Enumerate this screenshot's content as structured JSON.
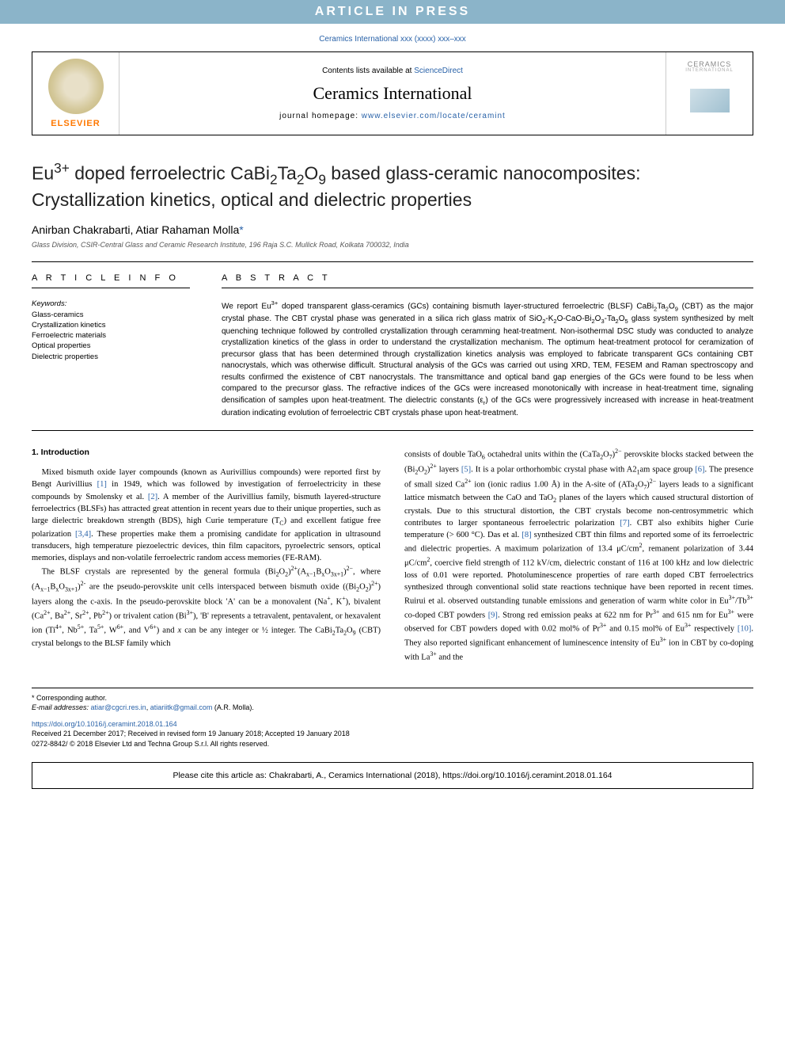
{
  "banner": {
    "text": "ARTICLE IN PRESS"
  },
  "journal_ref": "Ceramics International xxx (xxxx) xxx–xxx",
  "header": {
    "contents_text": "Contents lists available at ",
    "contents_link": "ScienceDirect",
    "journal_name": "Ceramics International",
    "homepage_text": "journal homepage: ",
    "homepage_link": "www.elsevier.com/locate/ceramint",
    "elsevier_label": "ELSEVIER",
    "cover_title": "CERAMICS",
    "cover_sub": "INTERNATIONAL"
  },
  "title_html": "Eu<sup>3+</sup> doped ferroelectric CaBi<sub>2</sub>Ta<sub>2</sub>O<sub>9</sub> based glass-ceramic nanocomposites: Crystallization kinetics, optical and dielectric properties",
  "authors_html": "Anirban Chakrabarti, Atiar Rahaman Molla<span class=\"corr\">*</span>",
  "affiliation": "Glass Division, CSIR-Central Glass and Ceramic Research Institute, 196 Raja S.C. Mullick Road, Kolkata 700032, India",
  "info": {
    "heading": "A R T I C L E   I N F O",
    "keywords_label": "Keywords:",
    "keywords": [
      "Glass-ceramics",
      "Crystallization kinetics",
      "Ferroelectric materials",
      "Optical properties",
      "Dielectric properties"
    ]
  },
  "abstract": {
    "heading": "A B S T R A C T",
    "text_html": "We report Eu<sup>3+</sup> doped transparent glass-ceramics (GCs) containing bismuth layer-structured ferroelectric (BLSF) CaBi<sub>2</sub>Ta<sub>2</sub>O<sub>9</sub> (CBT) as the major crystal phase. The CBT crystal phase was generated in a silica rich glass matrix of SiO<sub>2</sub>-K<sub>2</sub>O-CaO-Bi<sub>2</sub>O<sub>3</sub>-Ta<sub>2</sub>O<sub>5</sub> glass system synthesized by melt quenching technique followed by controlled crystallization through ceramming heat-treatment. Non-isothermal DSC study was conducted to analyze crystallization kinetics of the glass in order to understand the crystallization mechanism. The optimum heat-treatment protocol for ceramization of precursor glass that has been determined through crystallization kinetics analysis was employed to fabricate transparent GCs containing CBT nanocrystals, which was otherwise difficult. Structural analysis of the GCs was carried out using XRD, TEM, FESEM and Raman spectroscopy and results confirmed the existence of CBT nanocrystals. The transmittance and optical band gap energies of the GCs were found to be less when compared to the precursor glass. The refractive indices of the GCs were increased monotonically with increase in heat-treatment time, signaling densification of samples upon heat-treatment. The dielectric constants (ε<sub>r</sub>) of the GCs were progressively increased with increase in heat-treatment duration indicating evolution of ferroelectric CBT crystals phase upon heat-treatment."
  },
  "section1": {
    "heading": "1. Introduction",
    "col1_html": "<p>Mixed bismuth oxide layer compounds (known as Aurivillius compounds) were reported first by Bengt Aurivillius <a>[1]</a> in 1949, which was followed by investigation of ferroelectricity in these compounds by Smolensky et al. <a>[2]</a>. A member of the Aurivillius family, bismuth layered-structure ferroelectrics (BLSFs) has attracted great attention in recent years due to their unique properties, such as large dielectric breakdown strength (BDS), high Curie temperature (T<sub>C</sub>) and excellent fatigue free polarization <a>[3,4]</a>. These properties make them a promising candidate for application in ultrasound transducers, high temperature piezoelectric devices, thin film capacitors, pyroelectric sensors, optical memories, displays and non-volatile ferroelectric random access memories (FE-RAM).</p><p>The BLSF crystals are represented by the general formula (Bi<sub>2</sub>O<sub>2</sub>)<sup>2+</sup>(A<sub>x−1</sub>B<sub>x</sub>O<sub>3x+1</sub>)<sup>2−</sup>, where (A<sub>x−1</sub>B<sub>x</sub>O<sub>3x+1</sub>)<sup>2-</sup> are the pseudo-perovskite unit cells interspaced between bismuth oxide ((Bi<sub>2</sub>O<sub>2</sub>)<sup>2+</sup>) layers along the c-axis. In the pseudo-perovskite block 'A' can be a monovalent (Na<sup>+</sup>, K<sup>+</sup>), bivalent (Ca<sup>2+</sup>, Ba<sup>2+</sup>, Sr<sup>2+</sup>, Pb<sup>2+</sup>) or trivalent cation (Bi<sup>3+</sup>), 'B' represents a tetravalent, pentavalent, or hexavalent ion (Ti<sup>4+</sup>, Nb<sup>5+</sup>, Ta<sup>5+</sup>, W<sup>6+</sup>, and V<sup>6+</sup>) and <i>x</i> can be any integer or ½ integer. The CaBi<sub>2</sub>Ta<sub>2</sub>O<sub>9</sub> (CBT) crystal belongs to the BLSF family which</p>",
    "col2_html": "<p style=\"text-indent:0\">consists of double TaO<sub>6</sub> octahedral units within the (CaTa<sub>2</sub>O<sub>7</sub>)<sup>2−</sup> perovskite blocks stacked between the (Bi<sub>2</sub>O<sub>2</sub>)<sup>2+</sup> layers <a>[5]</a>. It is a polar orthorhombic crystal phase with A2<sub>1</sub>am space group <a>[6]</a>. The presence of small sized Ca<sup>2+</sup> ion (ionic radius 1.00 Å) in the A-site of (ATa<sub>2</sub>O<sub>7</sub>)<sup>2−</sup> layers leads to a significant lattice mismatch between the CaO and TaO<sub>2</sub> planes of the layers which caused structural distortion of crystals. Due to this structural distortion, the CBT crystals become non-centrosymmetric which contributes to larger spontaneous ferroelectric polarization <a>[7]</a>. CBT also exhibits higher Curie temperature (&gt; 600 °C). Das et al. <a>[8]</a> synthesized CBT thin films and reported some of its ferroelectric and dielectric properties. A maximum polarization of 13.4 μC/cm<sup>2</sup>, remanent polarization of 3.44 μC/cm<sup>2</sup>, coercive field strength of 112 kV/cm, dielectric constant of 116 at 100 kHz and low dielectric loss of 0.01 were reported. Photoluminescence properties of rare earth doped CBT ferroelectrics synthesized through conventional solid state reactions technique have been reported in recent times. Ruirui et al. observed outstanding tunable emissions and generation of warm white color in Eu<sup>3+</sup>/Tb<sup>3+</sup> co-doped CBT powders <a>[9]</a>. Strong red emission peaks at 622 nm for Pr<sup>3+</sup> and 615 nm for Eu<sup>3+</sup> were observed for CBT powders doped with 0.02 mol% of Pr<sup>3+</sup> and 0.15 mol% of Eu<sup>3+</sup> respectively <a>[10]</a>. They also reported significant enhancement of luminescence intensity of Eu<sup>3+</sup> ion in CBT by co-doping with La<sup>3+</sup> and the</p>"
  },
  "footer": {
    "corr_label": "* Corresponding author.",
    "email_label": "E-mail addresses: ",
    "email1": "atiar@cgcri.res.in",
    "email2": "atiariitk@gmail.com",
    "email_author": " (A.R. Molla).",
    "doi": "https://doi.org/10.1016/j.ceramint.2018.01.164",
    "received": "Received 21 December 2017; Received in revised form 19 January 2018; Accepted 19 January 2018",
    "copyright": "0272-8842/ © 2018 Elsevier Ltd and Techna Group S.r.l. All rights reserved."
  },
  "cite": "Please cite this article as: Chakrabarti, A., Ceramics International (2018), https://doi.org/10.1016/j.ceramint.2018.01.164",
  "colors": {
    "banner_bg": "#8bb4c9",
    "link": "#2962a8",
    "elsevier_orange": "#ff7800"
  }
}
